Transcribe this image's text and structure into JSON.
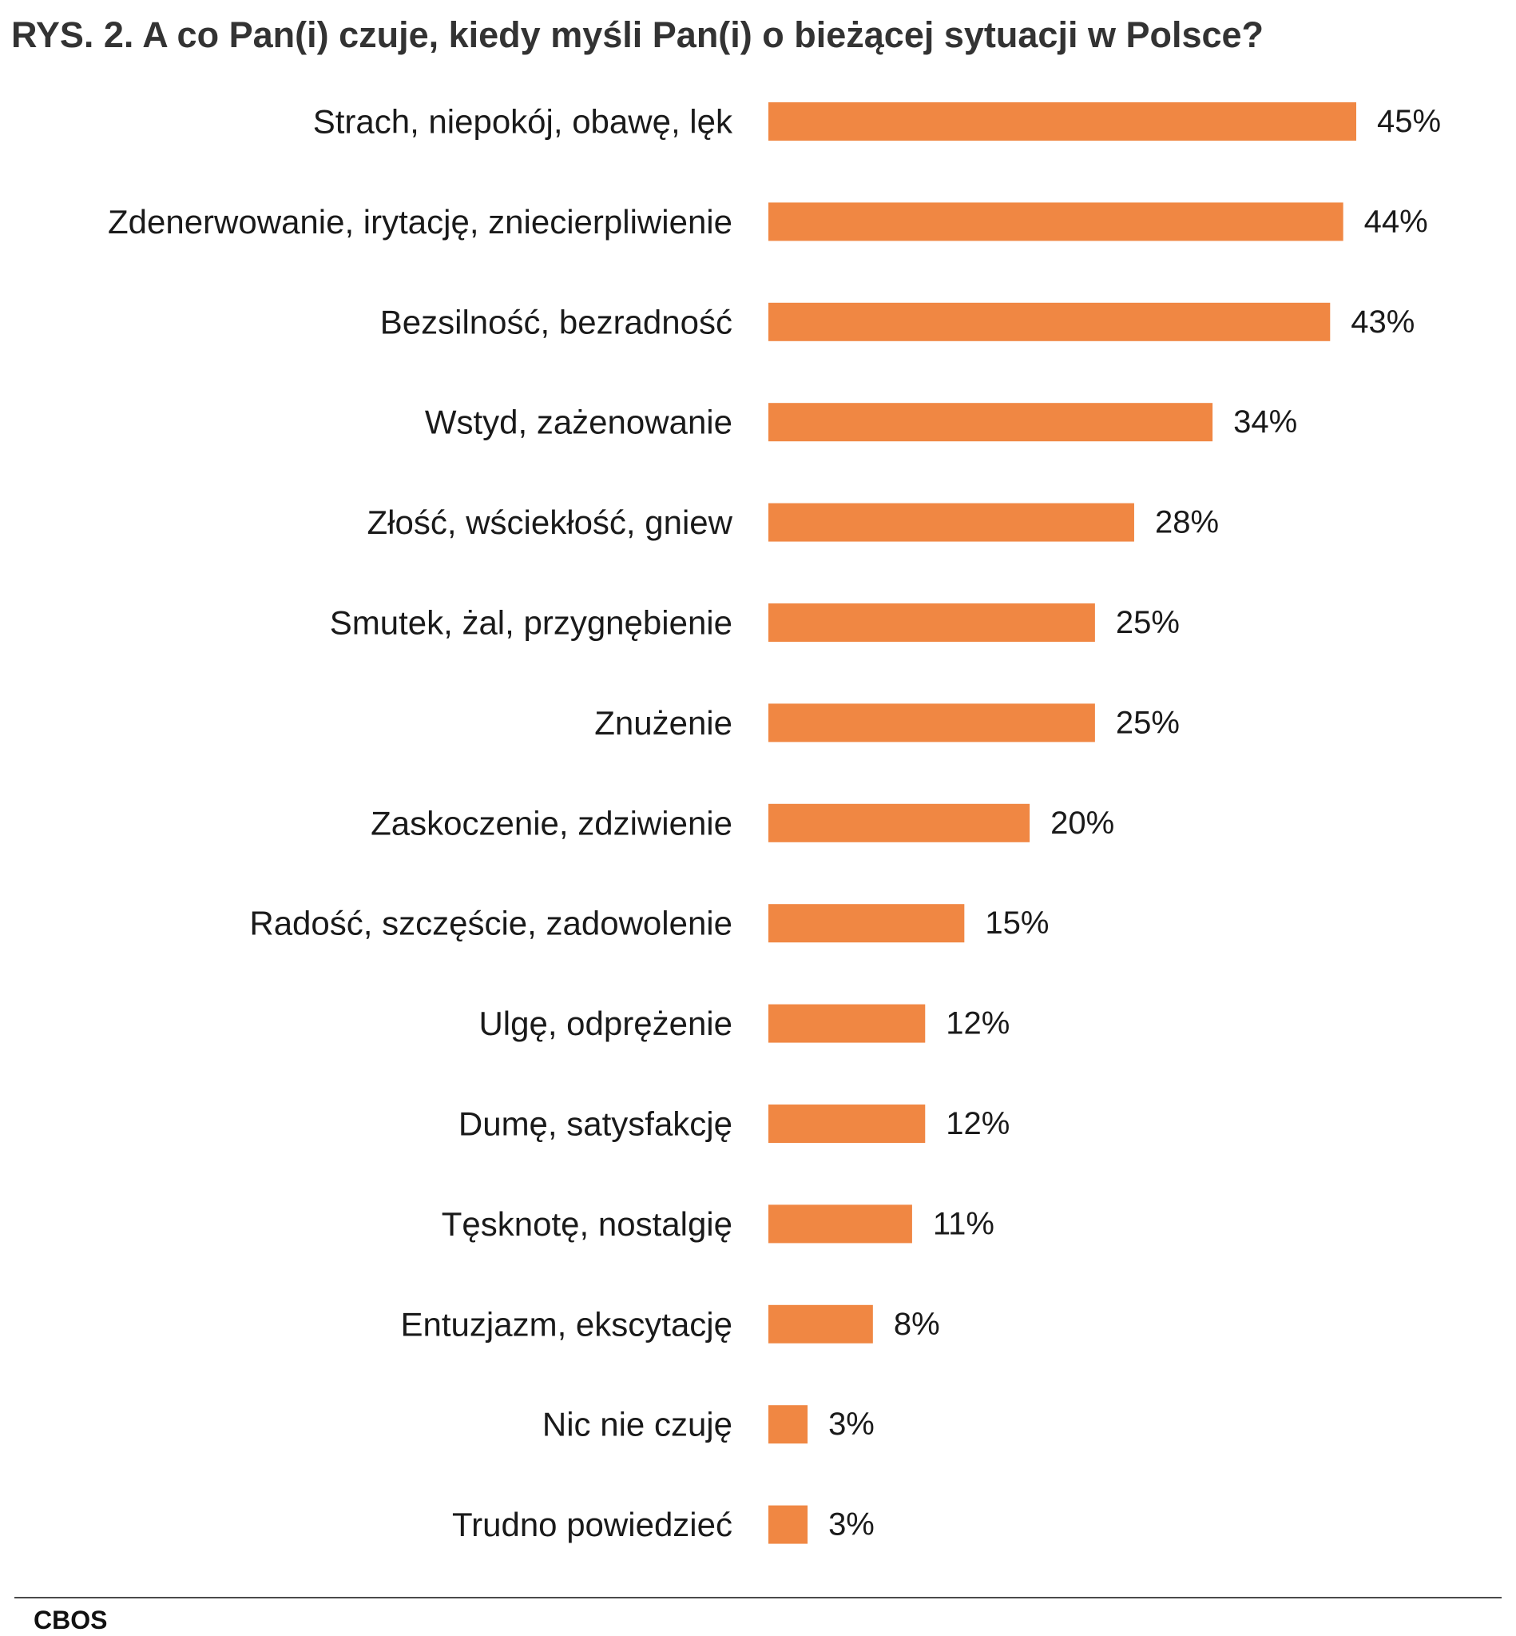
{
  "chart_data": {
    "type": "bar",
    "orientation": "horizontal",
    "title": "RYS. 2. A co Pan(i) czuje, kiedy myśli Pan(i) o bieżącej sytuacji w Polsce?",
    "categories": [
      "Strach, niepokój, obawę, lęk",
      "Zdenerwowanie, irytację, zniecierpliwienie",
      "Bezsilność, bezradność",
      "Wstyd, zażenowanie",
      "Złość, wściekłość, gniew",
      "Smutek, żal, przygnębienie",
      "Znużenie",
      "Zaskoczenie, zdziwienie",
      "Radość, szczęście, zadowolenie",
      "Ulgę, odprężenie",
      "Dumę, satysfakcję",
      "Tęsknotę, nostalgię",
      "Entuzjazm, ekscytację",
      "Nic nie czuję",
      "Trudno powiedzieć"
    ],
    "values": [
      45,
      44,
      43,
      34,
      28,
      25,
      25,
      20,
      15,
      12,
      12,
      11,
      8,
      3,
      3
    ],
    "value_labels": [
      "45%",
      "44%",
      "43%",
      "34%",
      "28%",
      "25%",
      "25%",
      "20%",
      "15%",
      "12%",
      "12%",
      "11%",
      "8%",
      "3%",
      "3%"
    ],
    "unit": "%",
    "xlim": [
      0,
      45
    ],
    "grid": false,
    "legend": "none",
    "bar_color": "#F08743"
  },
  "source": "CBOS"
}
